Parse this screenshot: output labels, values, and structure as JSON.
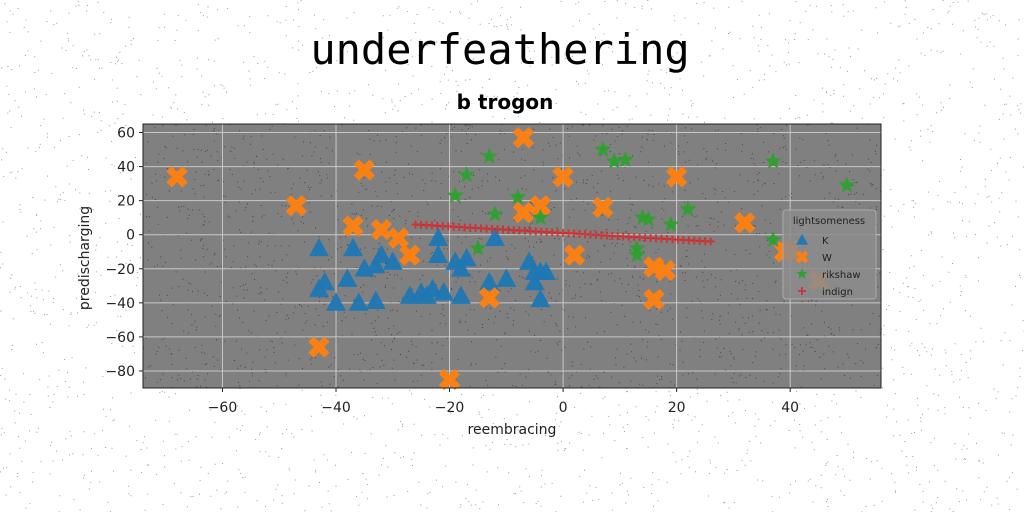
{
  "suptitle": "underfeathering",
  "chart_data": {
    "type": "scatter",
    "title": "b trogon",
    "xlabel": "reembracing",
    "ylabel": "predischarging",
    "xlim": [
      -74,
      56
    ],
    "ylim": [
      -90,
      65
    ],
    "xticks": [
      -60,
      -40,
      -20,
      0,
      20,
      40
    ],
    "yticks": [
      -80,
      -60,
      -40,
      -20,
      0,
      20,
      40,
      60
    ],
    "grid": true,
    "background": "#808080",
    "legend": {
      "title": "lightsomeness",
      "placement": "right"
    },
    "series": [
      {
        "name": "K",
        "marker": "triangle",
        "color": "#1f77b4",
        "points": [
          [
            -43,
            -8
          ],
          [
            -42,
            -28
          ],
          [
            -43,
            -32
          ],
          [
            -40,
            -40
          ],
          [
            -38,
            -26
          ],
          [
            -37,
            -8
          ],
          [
            -36,
            -40
          ],
          [
            -35,
            -20
          ],
          [
            -33,
            -18
          ],
          [
            -33,
            -39
          ],
          [
            -32,
            -12
          ],
          [
            -30,
            -16
          ],
          [
            -27,
            -36
          ],
          [
            -25,
            -34
          ],
          [
            -24,
            -36
          ],
          [
            -23,
            -32
          ],
          [
            -22,
            -12
          ],
          [
            -22,
            -2
          ],
          [
            -21,
            -34
          ],
          [
            -19,
            -16
          ],
          [
            -18,
            -20
          ],
          [
            -18,
            -36
          ],
          [
            -17,
            -14
          ],
          [
            -13,
            -28
          ],
          [
            -12,
            -2
          ],
          [
            -10,
            -26
          ],
          [
            -6,
            -16
          ],
          [
            -5,
            -22
          ],
          [
            -5,
            -28
          ],
          [
            -4,
            -38
          ],
          [
            -4,
            -22
          ],
          [
            -3,
            -22
          ]
        ]
      },
      {
        "name": "W",
        "marker": "x",
        "color": "#ff7f0e",
        "points": [
          [
            -68,
            34
          ],
          [
            -47,
            17
          ],
          [
            -43,
            -66
          ],
          [
            -37,
            5
          ],
          [
            -35,
            38
          ],
          [
            -32,
            3
          ],
          [
            -29,
            -2
          ],
          [
            -27,
            -12
          ],
          [
            -20,
            -85
          ],
          [
            -13,
            -37
          ],
          [
            -7,
            57
          ],
          [
            -7,
            13
          ],
          [
            -4,
            17
          ],
          [
            0,
            34
          ],
          [
            2,
            -12
          ],
          [
            7,
            16
          ],
          [
            16,
            -19
          ],
          [
            16,
            -38
          ],
          [
            18,
            -21
          ],
          [
            20,
            34
          ],
          [
            32,
            7
          ],
          [
            39,
            -10
          ],
          [
            40,
            -9
          ],
          [
            45,
            -27
          ]
        ]
      },
      {
        "name": "rikshaw",
        "marker": "star",
        "color": "#2ca02c",
        "points": [
          [
            -19,
            23
          ],
          [
            -17,
            35
          ],
          [
            -15,
            -8
          ],
          [
            -13,
            46
          ],
          [
            -12,
            12
          ],
          [
            -8,
            22
          ],
          [
            -4,
            10
          ],
          [
            7,
            50
          ],
          [
            9,
            43
          ],
          [
            11,
            44
          ],
          [
            13,
            -8
          ],
          [
            13,
            -12
          ],
          [
            14,
            10
          ],
          [
            15,
            9
          ],
          [
            19,
            6
          ],
          [
            22,
            15
          ],
          [
            37,
            -3
          ],
          [
            37,
            43
          ],
          [
            50,
            29
          ]
        ]
      },
      {
        "name": "indign",
        "marker": "plus",
        "color": "#d62728",
        "line": {
          "x_start": -26,
          "x_end": 26,
          "y_start": 6,
          "y_end": -4,
          "count": 55
        }
      }
    ]
  }
}
